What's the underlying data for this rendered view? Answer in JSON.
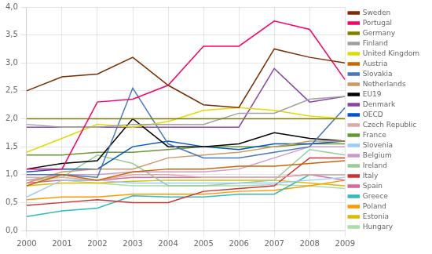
{
  "chart_data": {
    "type": "line",
    "x": [
      2000,
      2001,
      2002,
      2003,
      2004,
      2005,
      2006,
      2007,
      2008,
      2009
    ],
    "series": [
      {
        "name": "Sweden",
        "color": "#7B2D00",
        "values": [
          2.5,
          2.75,
          2.8,
          3.1,
          2.6,
          2.25,
          2.2,
          3.25,
          3.1,
          3.0
        ]
      },
      {
        "name": "Portugal",
        "color": "#FF0066",
        "values": [
          1.1,
          1.1,
          2.3,
          2.35,
          2.6,
          3.3,
          3.3,
          3.75,
          3.6,
          2.7
        ]
      },
      {
        "name": "Germany",
        "color": "#808000",
        "values": [
          2.0,
          2.0,
          2.0,
          2.0,
          2.0,
          2.0,
          2.0,
          2.0,
          2.0,
          2.0
        ]
      },
      {
        "name": "Finland",
        "color": "#A0A0A0",
        "values": [
          1.9,
          1.85,
          1.85,
          1.9,
          1.9,
          1.9,
          2.1,
          2.1,
          2.35,
          2.4
        ]
      },
      {
        "name": "United Kingdom",
        "color": "#DDDD00",
        "values": [
          1.4,
          1.65,
          1.9,
          1.85,
          1.95,
          2.15,
          2.2,
          2.15,
          2.05,
          2.0
        ]
      },
      {
        "name": "Austria",
        "color": "#CC6600",
        "values": [
          0.8,
          1.0,
          0.9,
          1.05,
          1.1,
          1.1,
          1.15,
          1.15,
          1.2,
          1.25
        ]
      },
      {
        "name": "Slovakia",
        "color": "#4477BB",
        "values": [
          1.0,
          1.0,
          0.95,
          2.55,
          1.55,
          1.3,
          1.3,
          1.4,
          1.5,
          2.2
        ]
      },
      {
        "name": "Netherlands",
        "color": "#CC9966",
        "values": [
          0.85,
          1.05,
          1.1,
          1.1,
          1.3,
          1.35,
          1.4,
          1.5,
          1.6,
          1.6
        ]
      },
      {
        "name": "EU19",
        "color": "#000000",
        "values": [
          1.1,
          1.2,
          1.25,
          2.0,
          1.5,
          1.5,
          1.55,
          1.75,
          1.65,
          1.6
        ]
      },
      {
        "name": "Denmark",
        "color": "#8844AA",
        "values": [
          1.85,
          1.85,
          1.85,
          1.85,
          1.85,
          1.85,
          1.85,
          2.9,
          2.3,
          2.4
        ]
      },
      {
        "name": "OECD",
        "color": "#0055CC",
        "values": [
          1.05,
          1.1,
          1.1,
          1.5,
          1.6,
          1.5,
          1.45,
          1.55,
          1.55,
          1.6
        ]
      },
      {
        "name": "Czech Republic",
        "color": "#DDAAAA",
        "values": [
          0.95,
          0.95,
          0.9,
          1.0,
          1.0,
          0.95,
          0.95,
          0.95,
          1.0,
          1.0
        ]
      },
      {
        "name": "France",
        "color": "#669933",
        "values": [
          1.35,
          1.35,
          1.4,
          1.4,
          1.45,
          1.5,
          1.5,
          1.5,
          1.55,
          1.55
        ]
      },
      {
        "name": "Slovenia",
        "color": "#99CCFF",
        "values": [
          0.6,
          0.9,
          0.9,
          0.85,
          0.85,
          0.85,
          0.85,
          0.85,
          0.9,
          0.95
        ]
      },
      {
        "name": "Belgium",
        "color": "#CC99CC",
        "values": [
          0.9,
          1.0,
          1.0,
          1.05,
          1.05,
          1.05,
          1.1,
          1.3,
          1.5,
          1.5
        ]
      },
      {
        "name": "Ireland",
        "color": "#99CC99",
        "values": [
          0.9,
          0.95,
          1.35,
          1.2,
          0.8,
          0.8,
          0.85,
          0.9,
          1.45,
          1.35
        ]
      },
      {
        "name": "Italy",
        "color": "#CC3333",
        "values": [
          0.45,
          0.5,
          0.55,
          0.5,
          0.5,
          0.7,
          0.75,
          0.8,
          1.3,
          1.3
        ]
      },
      {
        "name": "Spain",
        "color": "#DD6699",
        "values": [
          0.85,
          0.9,
          0.9,
          0.95,
          0.95,
          0.95,
          0.95,
          0.95,
          1.0,
          0.9
        ]
      },
      {
        "name": "Greece",
        "color": "#33BBBB",
        "values": [
          0.25,
          0.35,
          0.4,
          0.62,
          0.6,
          0.6,
          0.65,
          0.65,
          1.0,
          1.0
        ]
      },
      {
        "name": "Poland",
        "color": "#FF9900",
        "values": [
          0.55,
          0.6,
          0.6,
          0.65,
          0.65,
          0.65,
          0.7,
          0.72,
          0.8,
          0.9
        ]
      },
      {
        "name": "Estonia",
        "color": "#DDBB00",
        "values": [
          0.8,
          0.85,
          0.85,
          0.88,
          0.9,
          0.9,
          0.9,
          0.9,
          0.85,
          0.8
        ]
      },
      {
        "name": "Hungary",
        "color": "#AADDAA",
        "values": [
          0.9,
          0.9,
          0.85,
          0.8,
          0.8,
          0.8,
          0.8,
          0.82,
          0.8,
          0.75
        ]
      }
    ],
    "xlim": [
      2000,
      2009
    ],
    "xticks": [
      2000,
      2001,
      2002,
      2003,
      2004,
      2005,
      2006,
      2007,
      2008,
      2009
    ],
    "ylim": [
      0.0,
      4.0
    ],
    "yticks": [
      {
        "value": 0.0,
        "label": "0,0"
      },
      {
        "value": 0.5,
        "label": "0,5"
      },
      {
        "value": 1.0,
        "label": "1,0"
      },
      {
        "value": 1.5,
        "label": "1,5"
      },
      {
        "value": 2.0,
        "label": "2,0"
      },
      {
        "value": 2.5,
        "label": "2,5"
      },
      {
        "value": 3.0,
        "label": "3,0"
      },
      {
        "value": 3.5,
        "label": "3,5"
      },
      {
        "value": 4.0,
        "label": "4,0"
      }
    ],
    "grid": true,
    "legend": "right"
  }
}
